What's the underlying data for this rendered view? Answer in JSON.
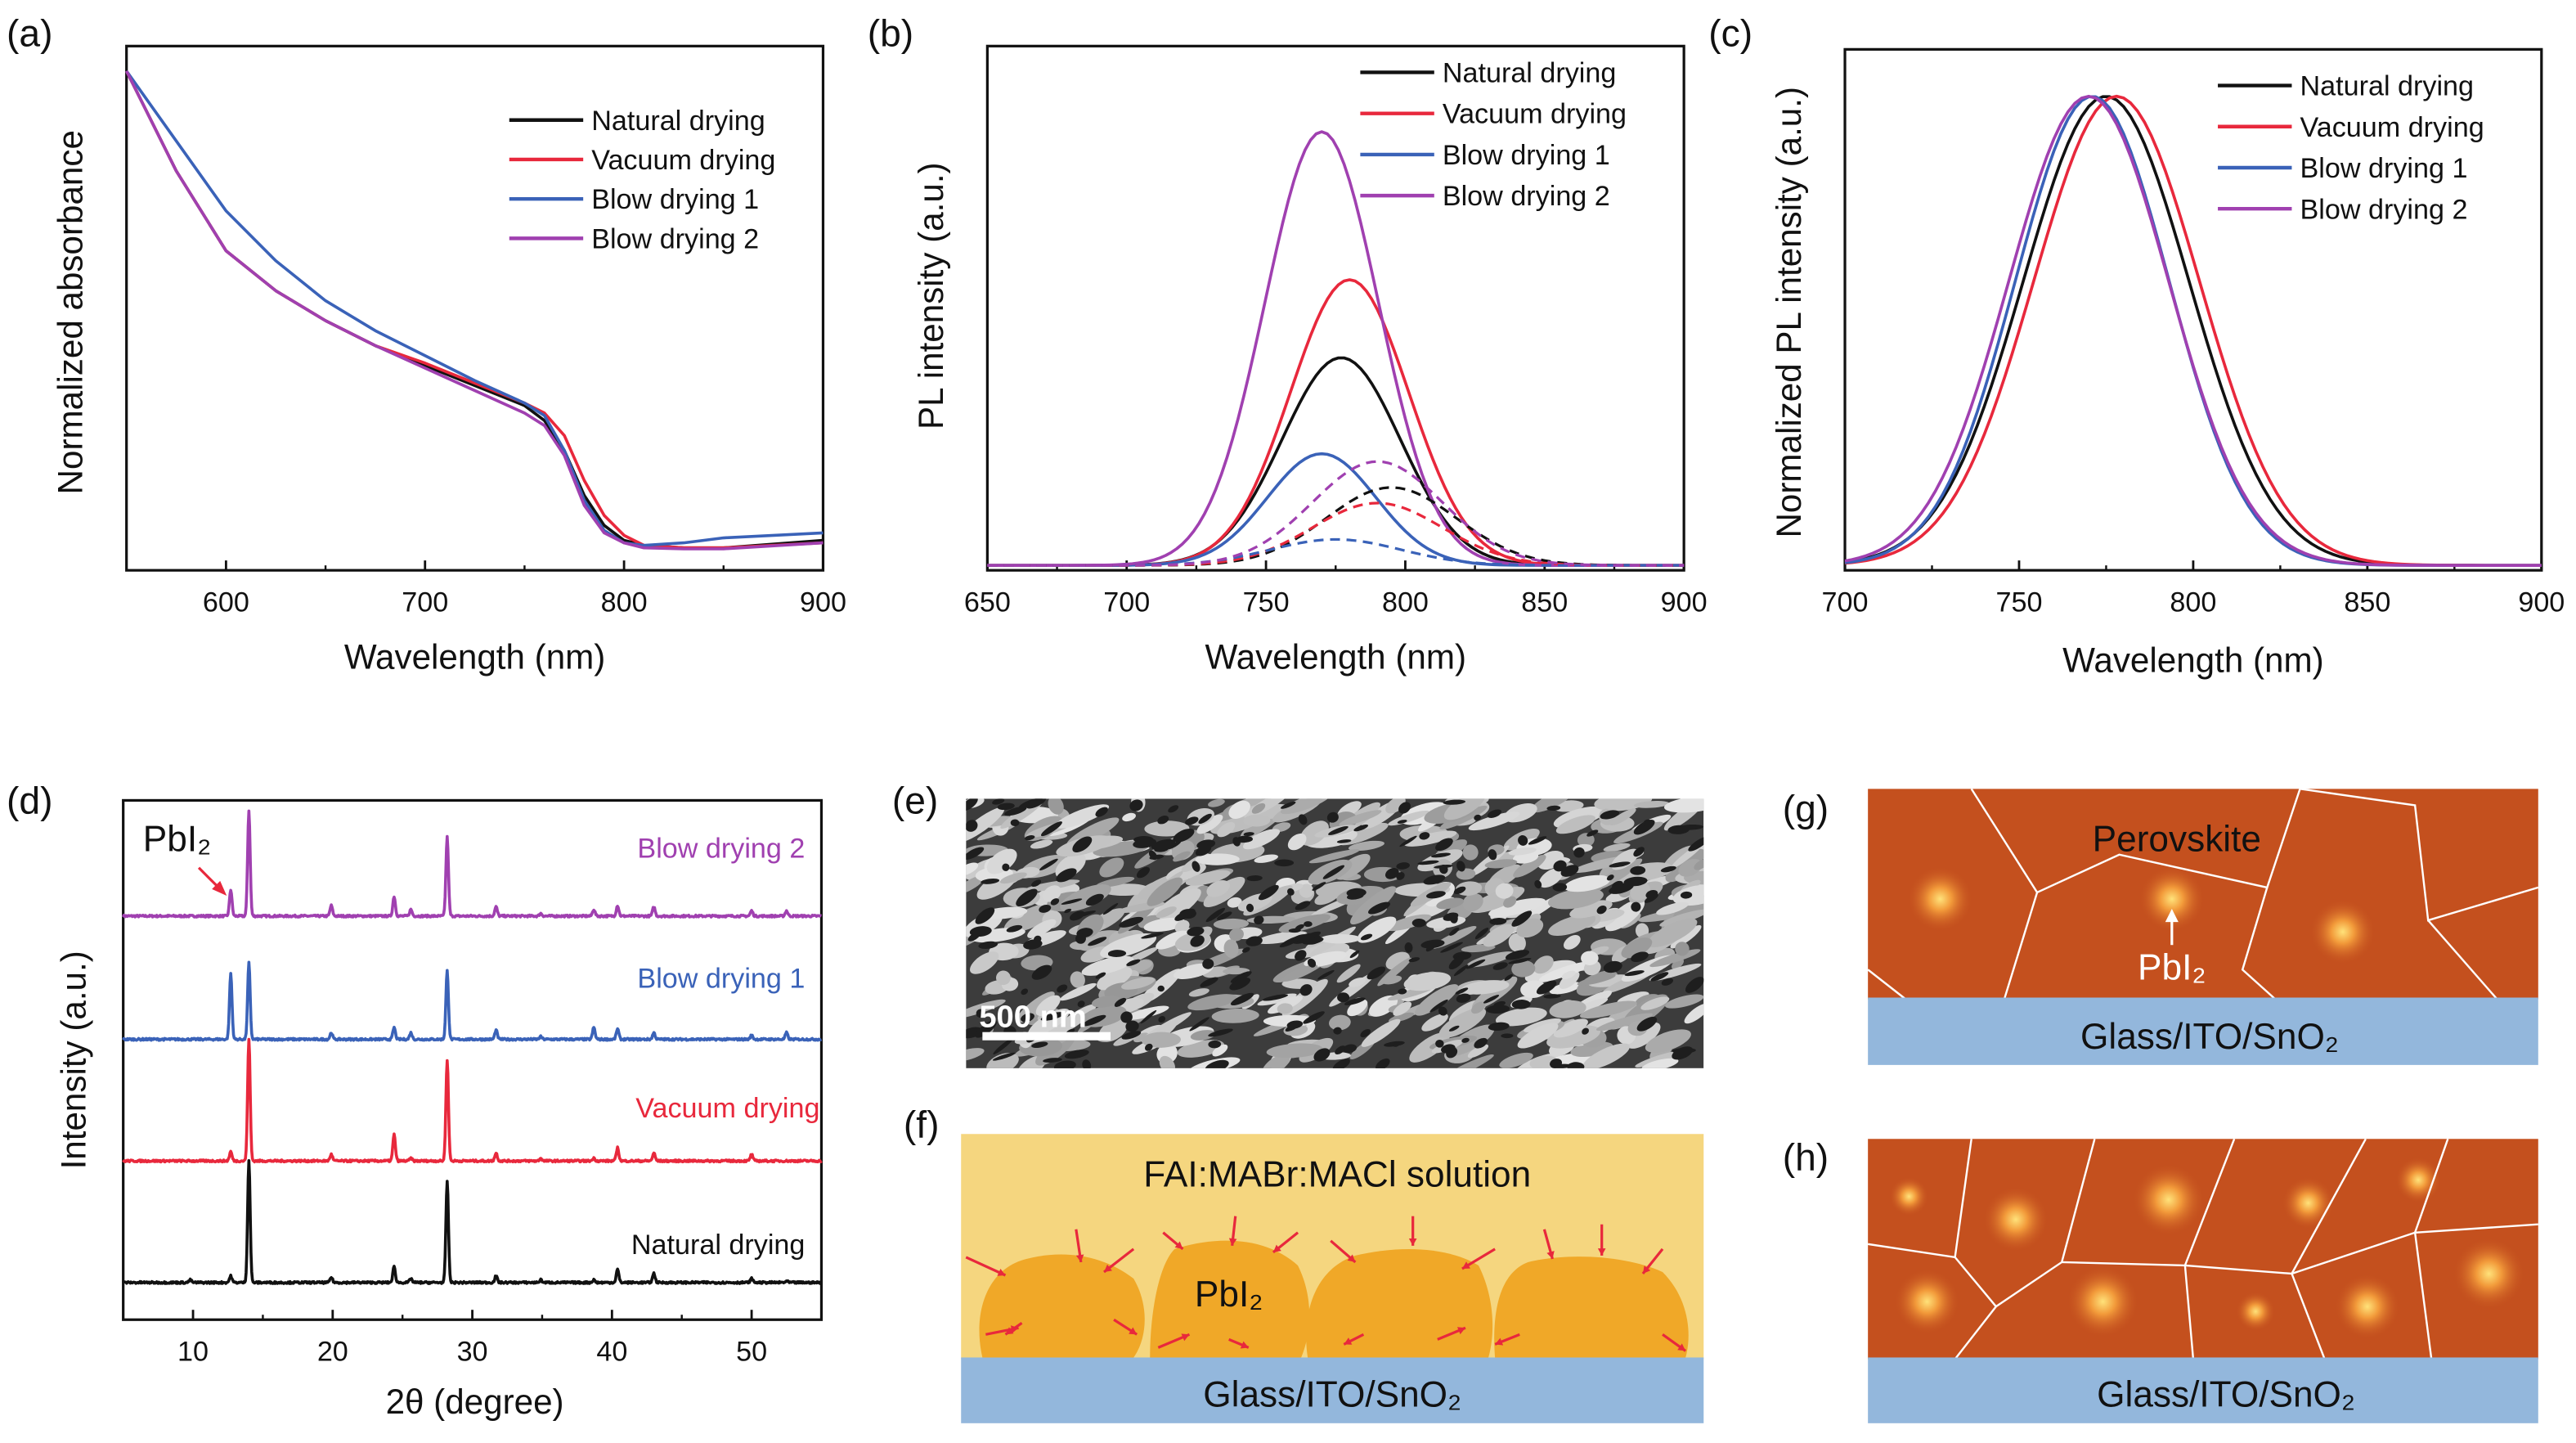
{
  "panel_labels": {
    "a": "(a)",
    "b": "(b)",
    "c": "(c)",
    "d": "(d)",
    "e": "(e)",
    "f": "(f)",
    "g": "(g)",
    "h": "(h)"
  },
  "colors": {
    "natural": "#111111",
    "vacuum": "#e8283c",
    "blow1": "#3a62b8",
    "blow2": "#a040b0",
    "film": "#c4501e",
    "substrate": "#93b7dc",
    "solution": "#f5d67f",
    "pbi2": "#f0a828"
  },
  "chart_data": [
    {
      "id": "a",
      "type": "line",
      "xlabel": "Wavelength (nm)",
      "ylabel": "Normalized absorbance",
      "xlim": [
        550,
        900
      ],
      "ylim": [
        0,
        1.05
      ],
      "xticks": [
        600,
        700,
        800,
        900
      ],
      "grid": false,
      "legend": "top-right",
      "series": [
        {
          "name": "Natural drying",
          "color": "#111111",
          "x": [
            550,
            575,
            600,
            625,
            650,
            675,
            700,
            725,
            750,
            760,
            770,
            780,
            790,
            800,
            810,
            830,
            850,
            900
          ],
          "y": [
            1.0,
            0.8,
            0.64,
            0.56,
            0.5,
            0.45,
            0.41,
            0.37,
            0.33,
            0.3,
            0.24,
            0.15,
            0.09,
            0.06,
            0.05,
            0.045,
            0.045,
            0.06
          ]
        },
        {
          "name": "Vacuum drying",
          "color": "#e8283c",
          "x": [
            550,
            575,
            600,
            625,
            650,
            675,
            700,
            725,
            750,
            760,
            770,
            780,
            790,
            800,
            810,
            830,
            850,
            900
          ],
          "y": [
            1.0,
            0.8,
            0.64,
            0.56,
            0.5,
            0.45,
            0.415,
            0.375,
            0.335,
            0.315,
            0.27,
            0.18,
            0.11,
            0.07,
            0.05,
            0.045,
            0.045,
            0.055
          ]
        },
        {
          "name": "Blow drying 1",
          "color": "#3a62b8",
          "x": [
            550,
            575,
            600,
            625,
            650,
            675,
            700,
            725,
            750,
            760,
            770,
            780,
            790,
            800,
            810,
            830,
            850,
            900
          ],
          "y": [
            1.0,
            0.86,
            0.72,
            0.62,
            0.54,
            0.48,
            0.43,
            0.38,
            0.335,
            0.31,
            0.24,
            0.14,
            0.08,
            0.055,
            0.05,
            0.055,
            0.065,
            0.075
          ]
        },
        {
          "name": "Blow drying 2",
          "color": "#a040b0",
          "x": [
            550,
            575,
            600,
            625,
            650,
            675,
            700,
            725,
            750,
            760,
            770,
            780,
            790,
            800,
            810,
            830,
            850,
            900
          ],
          "y": [
            1.0,
            0.8,
            0.64,
            0.56,
            0.5,
            0.45,
            0.405,
            0.36,
            0.315,
            0.29,
            0.23,
            0.13,
            0.075,
            0.055,
            0.045,
            0.043,
            0.043,
            0.055
          ]
        }
      ]
    },
    {
      "id": "b",
      "type": "line",
      "xlabel": "Wavelength (nm)",
      "ylabel": "PL intensity (a.u.)",
      "xlim": [
        650,
        900
      ],
      "ylim": [
        0,
        1
      ],
      "xticks": [
        650,
        700,
        750,
        800,
        850,
        900
      ],
      "grid": false,
      "legend": "top-right",
      "series": [
        {
          "name": "Natural drying",
          "color": "#111111",
          "style": "solid",
          "peak_nm": 777,
          "peak_intensity": 0.4,
          "fwhm_nm": 50
        },
        {
          "name": "Vacuum drying",
          "color": "#e8283c",
          "style": "solid",
          "peak_nm": 780,
          "peak_intensity": 0.55,
          "fwhm_nm": 50
        },
        {
          "name": "Blow drying 1",
          "color": "#3a62b8",
          "style": "solid",
          "peak_nm": 770,
          "peak_intensity": 0.215,
          "fwhm_nm": 46
        },
        {
          "name": "Blow drying 2",
          "color": "#a040b0",
          "style": "solid",
          "peak_nm": 770,
          "peak_intensity": 0.835,
          "fwhm_nm": 48
        },
        {
          "color": "#111111",
          "style": "dashed",
          "peak_nm": 795,
          "peak_intensity": 0.15,
          "fwhm_nm": 55
        },
        {
          "color": "#e8283c",
          "style": "dashed",
          "peak_nm": 790,
          "peak_intensity": 0.12,
          "fwhm_nm": 55
        },
        {
          "color": "#3a62b8",
          "style": "dashed",
          "peak_nm": 775,
          "peak_intensity": 0.05,
          "fwhm_nm": 55
        },
        {
          "color": "#a040b0",
          "style": "dashed",
          "peak_nm": 790,
          "peak_intensity": 0.2,
          "fwhm_nm": 55
        }
      ]
    },
    {
      "id": "c",
      "type": "line",
      "xlabel": "Wavelength (nm)",
      "ylabel": "Normalized PL intensity (a.u.)",
      "xlim": [
        700,
        900
      ],
      "ylim": [
        0,
        1.1
      ],
      "xticks": [
        700,
        750,
        800,
        850,
        900
      ],
      "grid": false,
      "legend": "top-right",
      "series": [
        {
          "name": "Natural drying",
          "color": "#111111",
          "peak_nm": 775,
          "peak_intensity": 1.0,
          "fwhm_nm": 56
        },
        {
          "name": "Vacuum drying",
          "color": "#e8283c",
          "peak_nm": 778,
          "peak_intensity": 1.0,
          "fwhm_nm": 56
        },
        {
          "name": "Blow drying 1",
          "color": "#3a62b8",
          "peak_nm": 771,
          "peak_intensity": 1.0,
          "fwhm_nm": 52
        },
        {
          "name": "Blow drying 2",
          "color": "#a040b0",
          "peak_nm": 770,
          "peak_intensity": 1.0,
          "fwhm_nm": 54
        }
      ]
    },
    {
      "id": "d",
      "type": "line",
      "xlabel": "2θ (degree)",
      "ylabel": "Intensity (a.u.)",
      "xlim": [
        5,
        55
      ],
      "xticks": [
        10,
        20,
        30,
        40,
        50
      ],
      "grid": false,
      "annotation": "PbI₂",
      "annotation_x": 12.7,
      "peak_positions": [
        9.8,
        12.7,
        14.0,
        19.9,
        24.4,
        25.6,
        28.2,
        31.7,
        34.9,
        38.7,
        40.4,
        43.0,
        50.0,
        52.5
      ],
      "series": [
        {
          "name": "Blow drying 2",
          "color": "#a040b0",
          "intensities": [
            0,
            0.2,
            0.8,
            0.08,
            0.15,
            0.05,
            0.6,
            0.07,
            0.02,
            0.05,
            0.08,
            0.07,
            0.04,
            0.04
          ]
        },
        {
          "name": "Blow drying 1",
          "color": "#3a62b8",
          "intensities": [
            0,
            0.5,
            0.58,
            0.05,
            0.09,
            0.05,
            0.52,
            0.07,
            0.02,
            0.09,
            0.08,
            0.05,
            0.03,
            0.05
          ]
        },
        {
          "name": "Vacuum drying",
          "color": "#e8283c",
          "intensities": [
            0,
            0.07,
            0.93,
            0.05,
            0.2,
            0.02,
            0.77,
            0.06,
            0.02,
            0.02,
            0.1,
            0.06,
            0.05,
            0
          ]
        },
        {
          "name": "Natural drying",
          "color": "#111111",
          "intensities": [
            0.02,
            0.05,
            0.93,
            0.04,
            0.12,
            0.03,
            0.77,
            0.05,
            0.02,
            0.02,
            0.1,
            0.07,
            0.03,
            0.01
          ]
        }
      ]
    }
  ],
  "sem": {
    "scale_bar": "500 nm"
  },
  "schematic_f": {
    "solution": "FAI:MABr:MACl solution",
    "pbi2": "PbI₂",
    "substrate": "Glass/ITO/SnO₂"
  },
  "schematic_g": {
    "film": "Perovskite",
    "pbi2": "PbI₂",
    "substrate": "Glass/ITO/SnO₂"
  },
  "schematic_h": {
    "substrate": "Glass/ITO/SnO₂"
  }
}
